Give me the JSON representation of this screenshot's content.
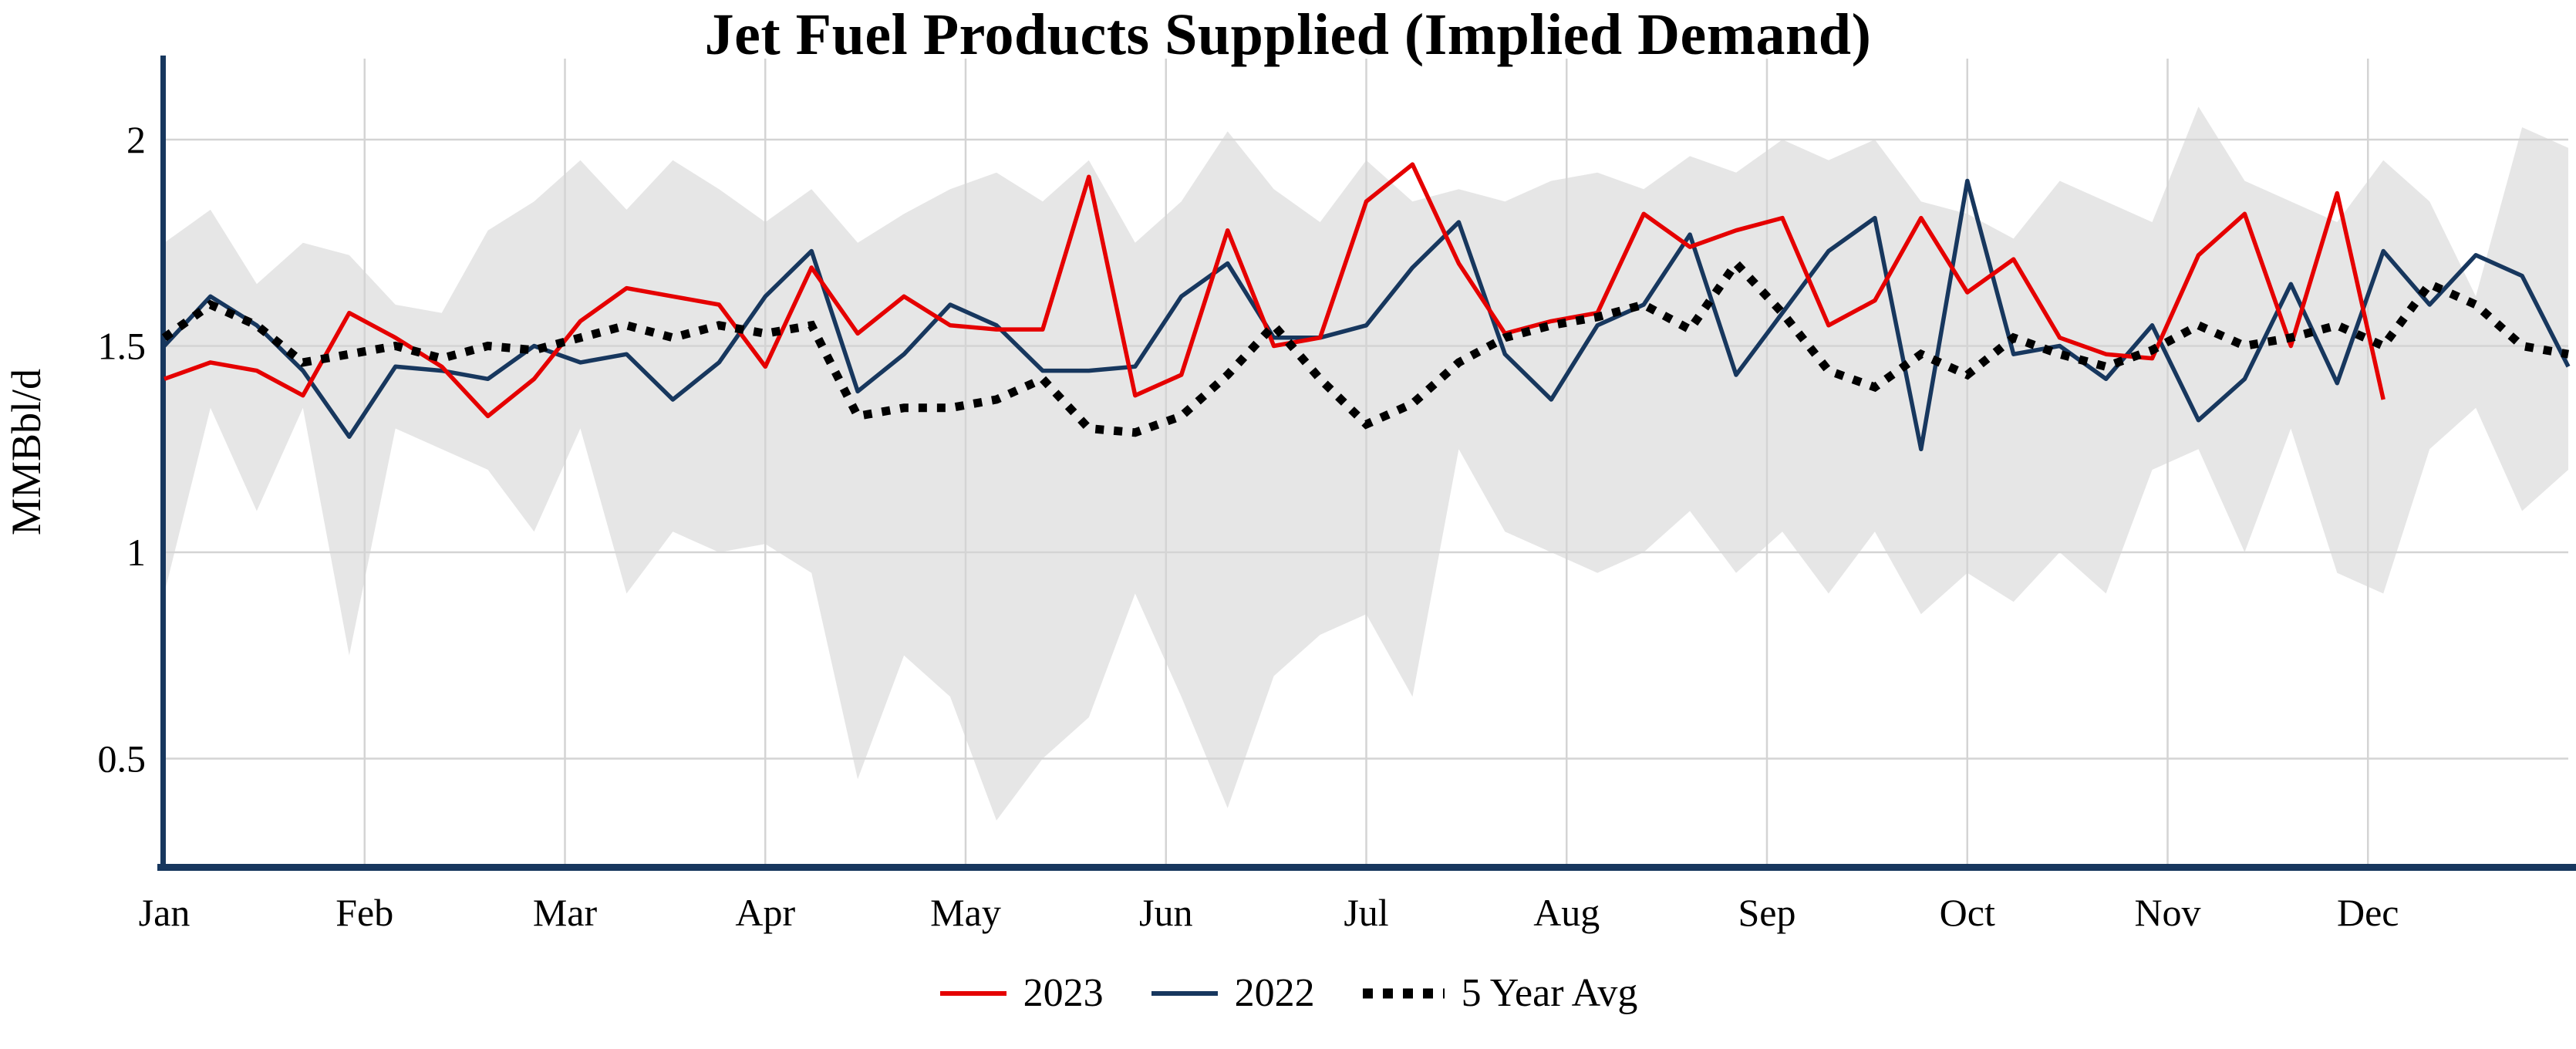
{
  "chart_data": {
    "type": "line",
    "title": "Jet Fuel Products Supplied (Implied Demand)",
    "ylabel": "MMBbl/d",
    "xlabel": "",
    "x_unit": "weekly observations, Jan through Dec",
    "grid": true,
    "legend_position": "bottom",
    "axis_color": "#17375e",
    "grid_color": "#d4d4d4",
    "ylim": [
      0.25,
      2.19
    ],
    "months": [
      "Jan",
      "Feb",
      "Mar",
      "Apr",
      "May",
      "Jun",
      "Jul",
      "Aug",
      "Sep",
      "Oct",
      "Nov",
      "Dec"
    ],
    "y_ticks": [
      {
        "value": 2,
        "label": "2"
      },
      {
        "value": 1.5,
        "label": "1.5"
      },
      {
        "value": 1,
        "label": "1"
      },
      {
        "value": 0.5,
        "label": "0.5"
      }
    ],
    "series": [
      {
        "name": "2023",
        "color": "#e50000",
        "style": "solid",
        "values": [
          1.42,
          1.46,
          1.44,
          1.38,
          1.58,
          1.52,
          1.45,
          1.33,
          1.42,
          1.56,
          1.64,
          1.62,
          1.6,
          1.45,
          1.69,
          1.53,
          1.62,
          1.55,
          1.54,
          1.54,
          1.91,
          1.38,
          1.43,
          1.78,
          1.5,
          1.52,
          1.85,
          1.94,
          1.7,
          1.53,
          1.56,
          1.58,
          1.82,
          1.74,
          1.78,
          1.81,
          1.55,
          1.61,
          1.81,
          1.63,
          1.71,
          1.52,
          1.48,
          1.47,
          1.72,
          1.82,
          1.5,
          1.87,
          1.37,
          null,
          null,
          null,
          null
        ]
      },
      {
        "name": "2022",
        "color": "#17375e",
        "style": "solid",
        "values": [
          1.5,
          1.62,
          1.55,
          1.44,
          1.28,
          1.45,
          1.44,
          1.42,
          1.5,
          1.46,
          1.48,
          1.37,
          1.46,
          1.62,
          1.73,
          1.39,
          1.48,
          1.6,
          1.55,
          1.44,
          1.44,
          1.45,
          1.62,
          1.7,
          1.52,
          1.52,
          1.55,
          1.69,
          1.8,
          1.48,
          1.37,
          1.55,
          1.6,
          1.77,
          1.43,
          1.58,
          1.73,
          1.81,
          1.25,
          1.9,
          1.48,
          1.5,
          1.42,
          1.55,
          1.32,
          1.42,
          1.65,
          1.41,
          1.73,
          1.6,
          1.72,
          1.67,
          1.45
        ]
      },
      {
        "name": "5 Year Avg",
        "color": "#000000",
        "style": "dotted",
        "values": [
          1.52,
          1.6,
          1.55,
          1.46,
          1.48,
          1.5,
          1.47,
          1.5,
          1.49,
          1.52,
          1.55,
          1.52,
          1.55,
          1.53,
          1.55,
          1.33,
          1.35,
          1.35,
          1.37,
          1.42,
          1.3,
          1.29,
          1.33,
          1.43,
          1.55,
          1.42,
          1.31,
          1.36,
          1.46,
          1.52,
          1.55,
          1.57,
          1.6,
          1.54,
          1.7,
          1.58,
          1.44,
          1.4,
          1.48,
          1.43,
          1.52,
          1.48,
          1.45,
          1.49,
          1.55,
          1.5,
          1.52,
          1.55,
          1.5,
          1.65,
          1.6,
          1.5,
          1.48
        ]
      }
    ],
    "band": {
      "name": "5-year range",
      "color": "#e6e6e6",
      "upper": [
        1.75,
        1.83,
        1.65,
        1.75,
        1.72,
        1.6,
        1.58,
        1.78,
        1.85,
        1.95,
        1.83,
        1.95,
        1.88,
        1.8,
        1.88,
        1.75,
        1.82,
        1.88,
        1.92,
        1.85,
        1.95,
        1.75,
        1.85,
        2.02,
        1.88,
        1.8,
        1.95,
        1.85,
        1.88,
        1.85,
        1.9,
        1.92,
        1.88,
        1.96,
        1.92,
        2.0,
        1.95,
        2.0,
        1.85,
        1.82,
        1.76,
        1.9,
        1.85,
        1.8,
        2.08,
        1.9,
        1.85,
        1.8,
        1.95,
        1.85,
        1.62,
        2.03,
        1.98
      ],
      "lower": [
        0.9,
        1.35,
        1.1,
        1.35,
        0.75,
        1.3,
        1.25,
        1.2,
        1.05,
        1.3,
        0.9,
        1.05,
        1.0,
        1.02,
        0.95,
        0.45,
        0.75,
        0.65,
        0.35,
        0.5,
        0.6,
        0.9,
        0.65,
        0.38,
        0.7,
        0.8,
        0.85,
        0.65,
        1.25,
        1.05,
        1.0,
        0.95,
        1.0,
        1.1,
        0.95,
        1.05,
        0.9,
        1.05,
        0.85,
        0.95,
        0.88,
        1.0,
        0.9,
        1.2,
        1.25,
        1.0,
        1.3,
        0.95,
        0.9,
        1.25,
        1.35,
        1.1,
        1.2
      ]
    },
    "legend": [
      "2023",
      "2022",
      "5 Year Avg"
    ]
  }
}
